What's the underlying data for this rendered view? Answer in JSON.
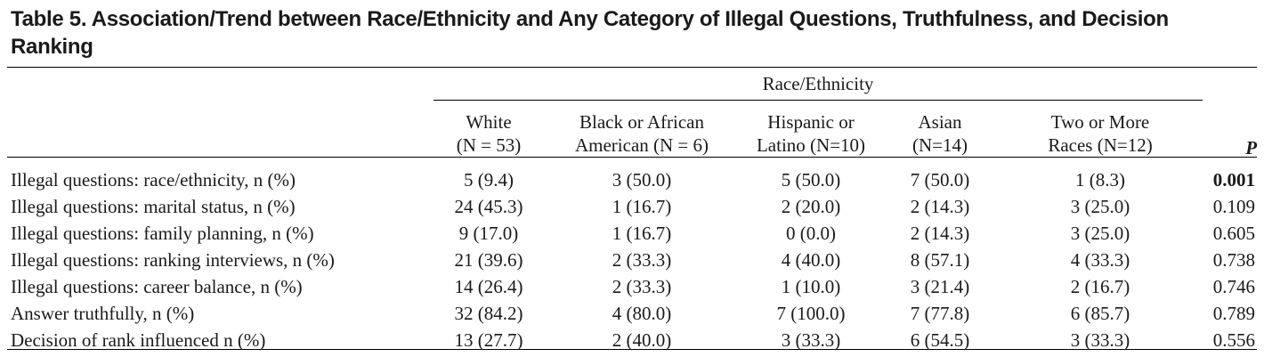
{
  "caption": {
    "line1": "Table 5. Association/Trend between Race/Ethnicity and Any Category of Illegal Questions, Truthfulness, and Decision",
    "line2": "Ranking"
  },
  "table": {
    "group_header": "Race/Ethnicity",
    "columns": [
      {
        "line1": "White",
        "line2": "(N = 53)"
      },
      {
        "line1": "Black or African",
        "line2": "American (N = 6)"
      },
      {
        "line1": "Hispanic or",
        "line2": "Latino (N=10)"
      },
      {
        "line1": "Asian",
        "line2": "(N=14)"
      },
      {
        "line1": "Two or More",
        "line2": "Races (N=12)"
      }
    ],
    "p_header": "P",
    "rows": [
      {
        "label": "Illegal questions: race/ethnicity, n (%)",
        "values": [
          "5 (9.4)",
          "3 (50.0)",
          "5 (50.0)",
          "7 (50.0)",
          "1 (8.3)"
        ],
        "p": "0.001",
        "significant": true
      },
      {
        "label": "Illegal questions: marital status, n (%)",
        "values": [
          "24 (45.3)",
          "1 (16.7)",
          "2 (20.0)",
          "2 (14.3)",
          "3 (25.0)"
        ],
        "p": "0.109",
        "significant": false
      },
      {
        "label": "Illegal questions: family planning, n (%)",
        "values": [
          "9 (17.0)",
          "1 (16.7)",
          "0 (0.0)",
          "2 (14.3)",
          "3 (25.0)"
        ],
        "p": "0.605",
        "significant": false
      },
      {
        "label": "Illegal questions: ranking interviews, n (%)",
        "values": [
          "21 (39.6)",
          "2 (33.3)",
          "4 (40.0)",
          "8 (57.1)",
          "4 (33.3)"
        ],
        "p": "0.738",
        "significant": false
      },
      {
        "label": "Illegal questions: career balance, n (%)",
        "values": [
          "14 (26.4)",
          "2 (33.3)",
          "1 (10.0)",
          "3 (21.4)",
          "2 (16.7)"
        ],
        "p": "0.746",
        "significant": false
      },
      {
        "label": "Answer truthfully, n (%)",
        "values": [
          "32 (84.2)",
          "4 (80.0)",
          "7 (100.0)",
          "7 (77.8)",
          "6 (85.7)"
        ],
        "p": "0.789",
        "significant": false
      },
      {
        "label": "Decision of rank influenced n (%)",
        "values": [
          "13 (27.7)",
          "2 (40.0)",
          "3 (33.3)",
          "6 (54.5)",
          "3 (33.3)"
        ],
        "p": "0.556",
        "significant": false
      }
    ]
  }
}
